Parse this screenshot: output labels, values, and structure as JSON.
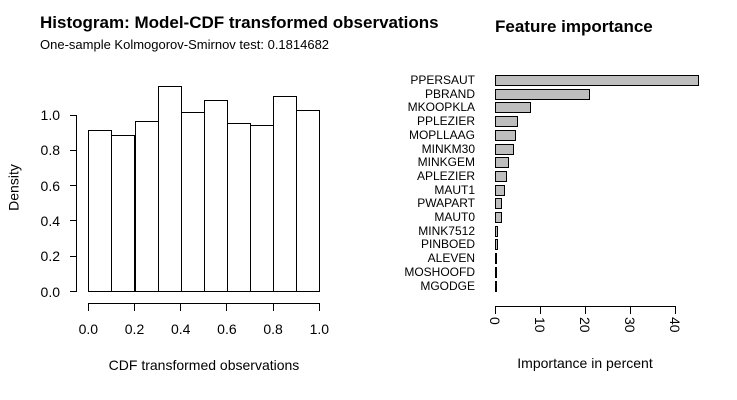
{
  "background": "#ffffff",
  "chart_data": [
    {
      "type": "bar",
      "style": "histogram",
      "title": "Histogram: Model-CDF transformed observations",
      "subtitle": "One-sample Kolmogorov-Smirnov test: 0.1814682",
      "xlabel": "CDF transformed observations",
      "ylabel": "Density",
      "bin_edges": [
        0.0,
        0.1,
        0.2,
        0.3,
        0.4,
        0.5,
        0.6,
        0.7,
        0.8,
        0.9,
        1.0
      ],
      "values": [
        0.92,
        0.89,
        0.97,
        1.17,
        1.02,
        1.09,
        0.96,
        0.95,
        1.11,
        1.03
      ],
      "x_ticks": [
        0.0,
        0.2,
        0.4,
        0.6,
        0.8,
        1.0
      ],
      "x_tick_labels": [
        "0.0",
        "0.2",
        "0.4",
        "0.6",
        "0.8",
        "1.0"
      ],
      "y_ticks": [
        0.0,
        0.2,
        0.4,
        0.6,
        0.8,
        1.0
      ],
      "y_tick_labels": [
        "0.0",
        "0.2",
        "0.4",
        "0.6",
        "0.8",
        "1.0"
      ],
      "xlim": [
        0.0,
        1.0
      ],
      "ylim": [
        0.0,
        1.17
      ],
      "grid": false,
      "bar_fill": "#ffffff",
      "bar_border": "#000000"
    },
    {
      "type": "bar",
      "orientation": "horizontal",
      "title": "Feature importance",
      "xlabel": "Importance in percent",
      "ylabel": "",
      "categories": [
        "PPERSAUT",
        "PBRAND",
        "MKOOPKLA",
        "PPLEZIER",
        "MOPLLAAG",
        "MINKM30",
        "MINKGEM",
        "APLEZIER",
        "MAUT1",
        "PWAPART",
        "MAUT0",
        "MINK7512",
        "PINBOED",
        "ALEVEN",
        "MOSHOOFD",
        "MGODGE"
      ],
      "values": [
        45.3,
        21.2,
        7.9,
        5.1,
        4.6,
        4.2,
        3.1,
        2.7,
        2.2,
        1.6,
        1.5,
        0.65,
        0.65,
        0.4,
        0.15,
        0.15
      ],
      "x_ticks": [
        0,
        10,
        20,
        30,
        40
      ],
      "x_tick_labels": [
        "0",
        "10",
        "20",
        "30",
        "40"
      ],
      "xlim": [
        0,
        45.5
      ],
      "grid": false,
      "legend": "none",
      "bar_fill": "#bebebe",
      "bar_border": "#000000"
    }
  ]
}
